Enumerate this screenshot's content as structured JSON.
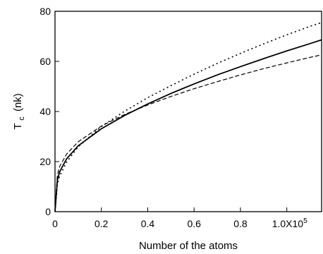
{
  "chart_data": {
    "type": "line",
    "xlabel": "Number of the atoms",
    "ylabel_main": "T",
    "ylabel_sub": "c",
    "ylabel_unit": "(nk)",
    "xlim": [
      0,
      115000
    ],
    "ylim": [
      0,
      80
    ],
    "x_ticks": [
      {
        "value": 0,
        "label": "0"
      },
      {
        "value": 20000,
        "label": "0.2"
      },
      {
        "value": 40000,
        "label": "0.4"
      },
      {
        "value": 60000,
        "label": "0.6"
      },
      {
        "value": 80000,
        "label": "0.8"
      },
      {
        "value": 100000,
        "label": "1.0X10",
        "exp": "5"
      }
    ],
    "y_ticks": [
      {
        "value": 0,
        "label": "0"
      },
      {
        "value": 20,
        "label": "20"
      },
      {
        "value": 40,
        "label": "40"
      },
      {
        "value": 60,
        "label": "60"
      },
      {
        "value": 80,
        "label": "80"
      }
    ],
    "grid": false,
    "series": [
      {
        "style": "solid",
        "x": [
          0,
          1000,
          2000,
          5000,
          10000,
          20000,
          30000,
          40000,
          50000,
          60000,
          70000,
          80000,
          90000,
          100000,
          110000,
          115000
        ],
        "y": [
          0,
          12.5,
          15.9,
          21.1,
          26.3,
          33.1,
          38.4,
          43.0,
          47.2,
          51.0,
          54.6,
          57.9,
          61.1,
          64.2,
          67.1,
          68.6
        ]
      },
      {
        "style": "dotted",
        "x": [
          0,
          1000,
          2000,
          5000,
          10000,
          20000,
          30000,
          40000,
          50000,
          60000,
          70000,
          80000,
          90000,
          100000,
          110000,
          115000
        ],
        "y": [
          0,
          10.8,
          14.2,
          19.8,
          25.9,
          34.0,
          40.1,
          45.5,
          50.3,
          54.9,
          59.2,
          63.2,
          67.0,
          70.6,
          74.0,
          75.5
        ]
      },
      {
        "style": "dashed",
        "x": [
          0,
          1000,
          2000,
          5000,
          10000,
          20000,
          30000,
          40000,
          50000,
          60000,
          70000,
          80000,
          90000,
          100000,
          110000,
          115000
        ],
        "y": [
          0,
          14.5,
          18.0,
          23.0,
          27.9,
          34.2,
          38.8,
          42.6,
          46.0,
          49.1,
          51.9,
          54.6,
          57.1,
          59.4,
          61.6,
          62.6
        ]
      }
    ]
  }
}
